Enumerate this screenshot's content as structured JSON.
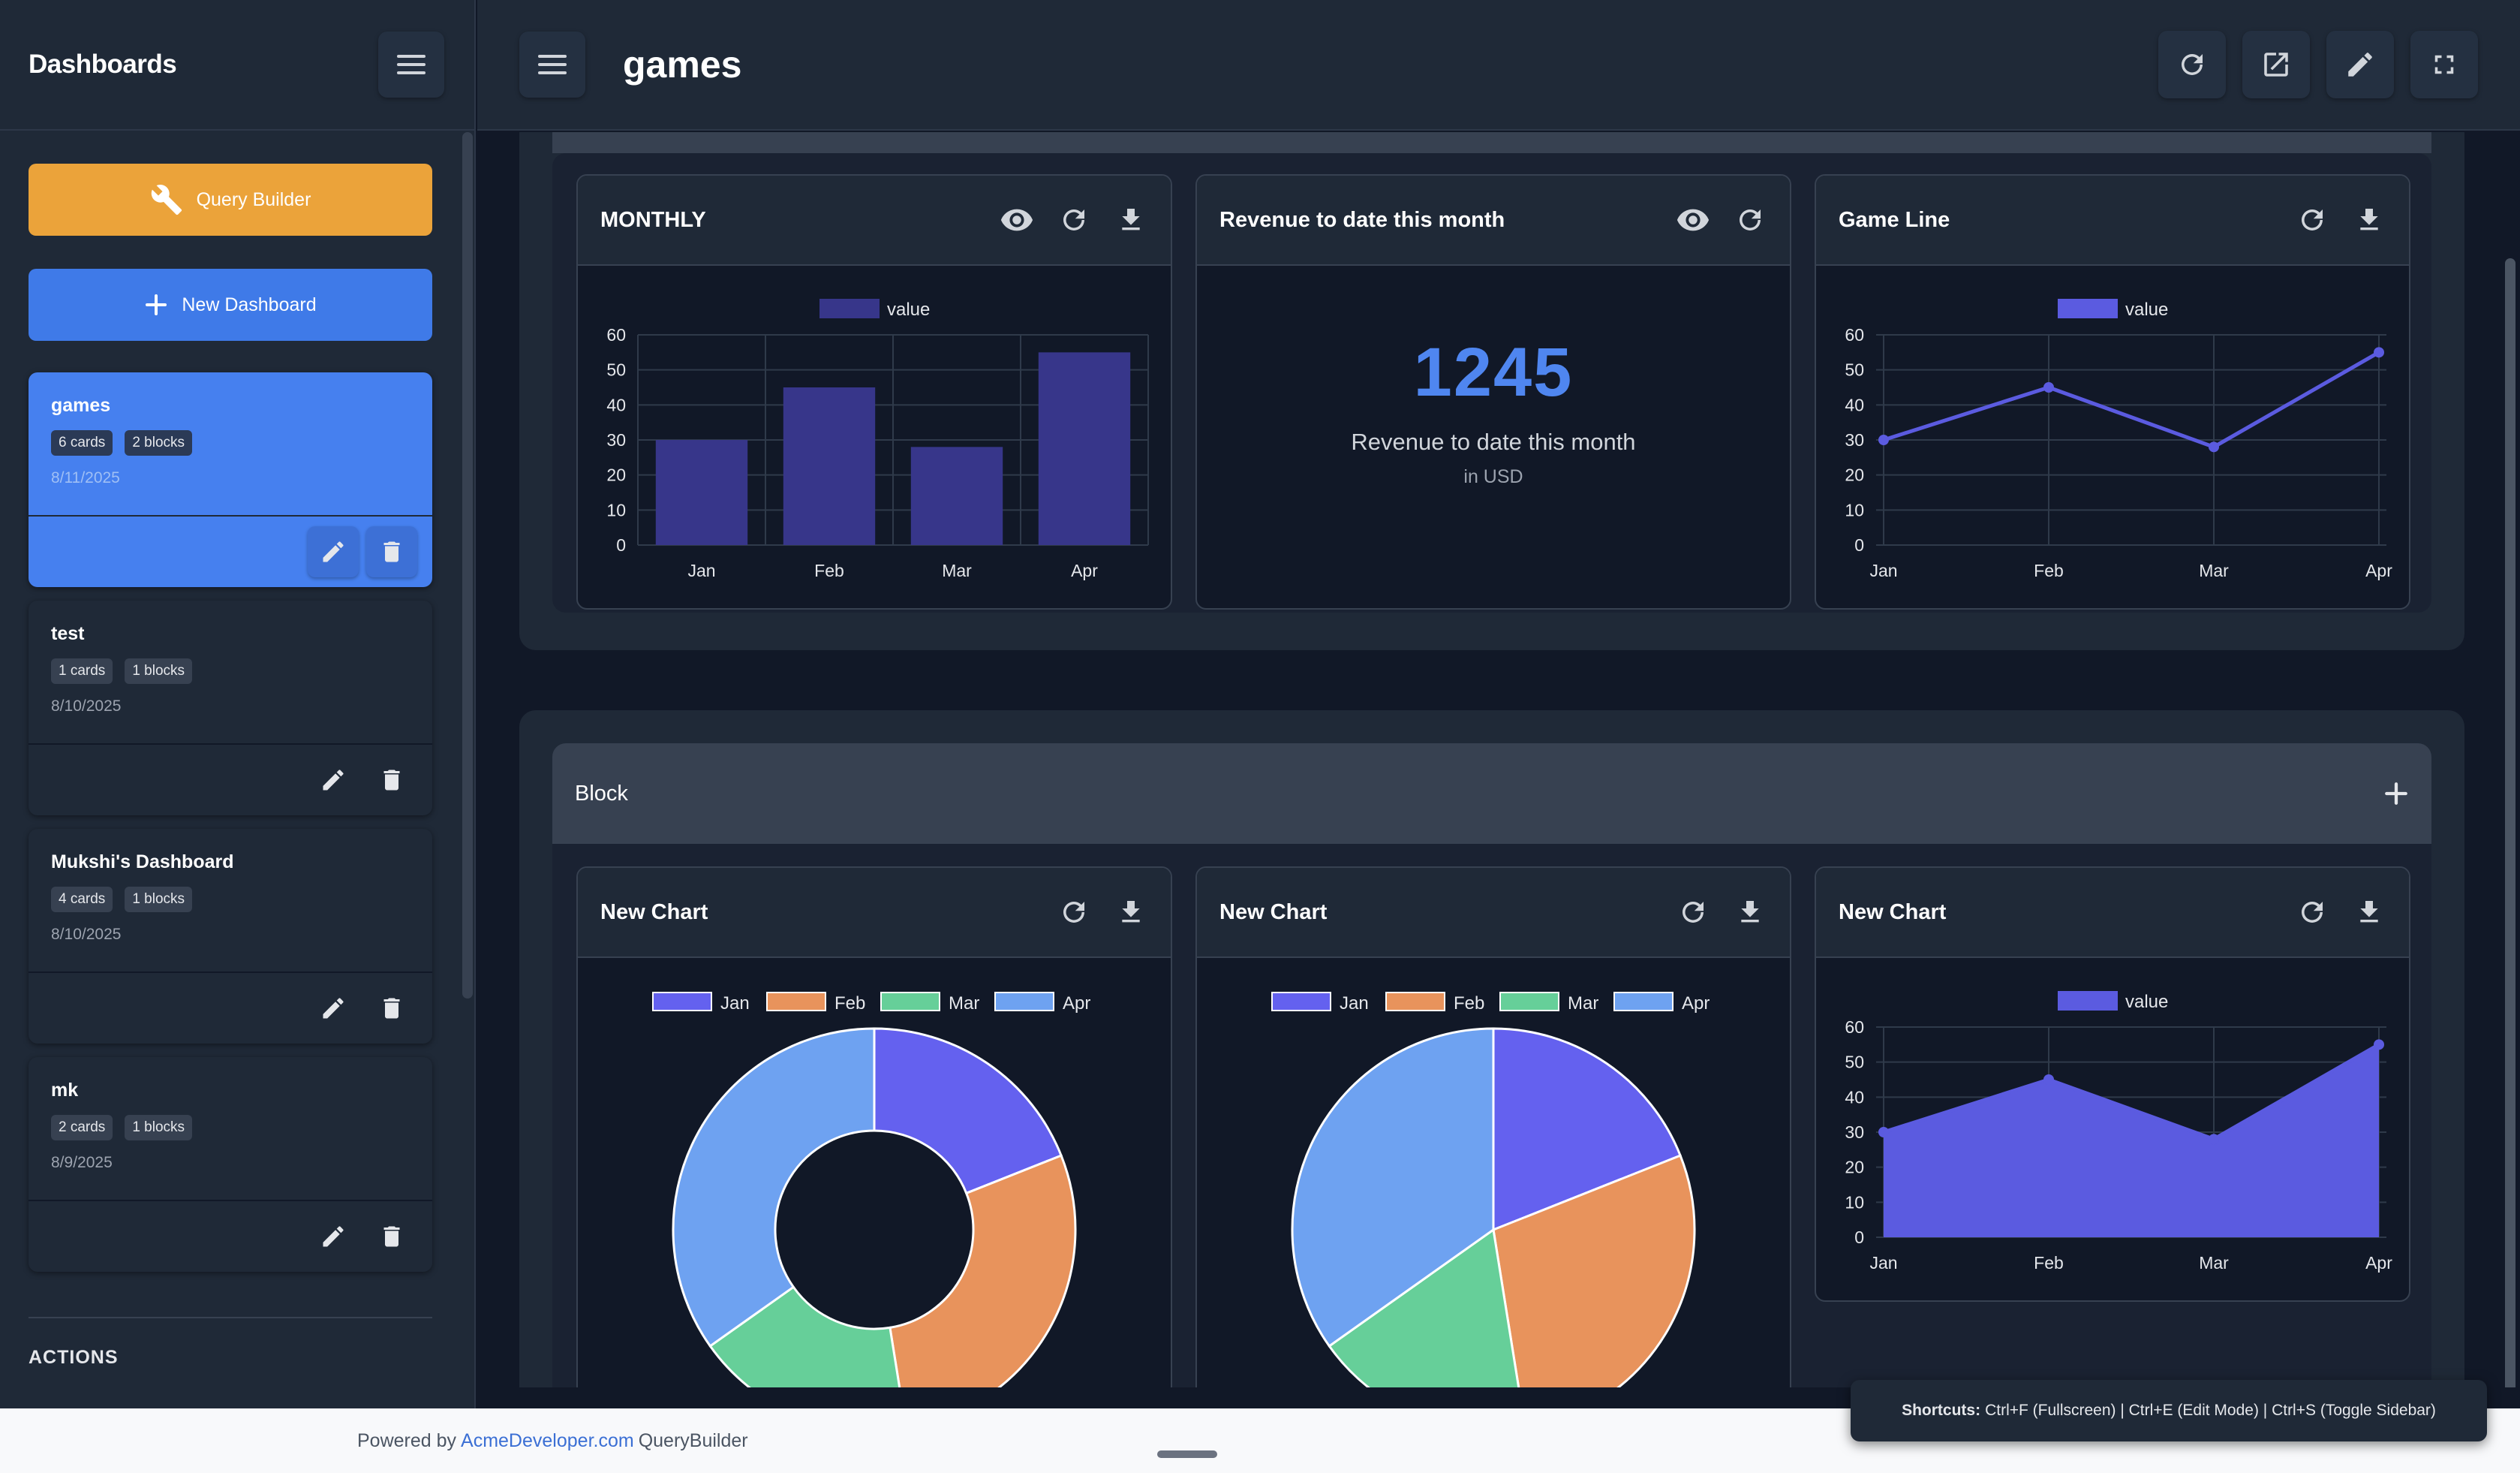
{
  "sidebar": {
    "title": "Dashboards",
    "query_builder_label": "Query Builder",
    "new_dashboard_label": "New Dashboard",
    "dashboards": [
      {
        "name": "games",
        "cards": "6 cards",
        "blocks": "2 blocks",
        "date": "8/11/2025"
      },
      {
        "name": "test",
        "cards": "1 cards",
        "blocks": "1 blocks",
        "date": "8/10/2025"
      },
      {
        "name": "Mukshi's Dashboard",
        "cards": "4 cards",
        "blocks": "1 blocks",
        "date": "8/10/2025"
      },
      {
        "name": "mk",
        "cards": "2 cards",
        "blocks": "1 blocks",
        "date": "8/9/2025"
      }
    ],
    "actions_label": "ACTIONS"
  },
  "header": {
    "title": "games"
  },
  "block2": {
    "title": "Block"
  },
  "cards": {
    "monthly": {
      "title": "MONTHLY"
    },
    "revenue": {
      "title": "Revenue to date this month",
      "value": "1245",
      "label": "Revenue to date this month",
      "sub": "in USD"
    },
    "gameline": {
      "title": "Game Line"
    },
    "chart1": {
      "title": "New Chart"
    },
    "chart2": {
      "title": "New Chart"
    },
    "chart3": {
      "title": "New Chart"
    }
  },
  "chart_data": [
    {
      "type": "bar",
      "categories": [
        "Jan",
        "Feb",
        "Mar",
        "Apr"
      ],
      "values": [
        30,
        45,
        28,
        55
      ],
      "legend": [
        "value"
      ],
      "ylim": [
        0,
        60
      ],
      "yticks": [
        0,
        10,
        20,
        30,
        40,
        50,
        60
      ]
    },
    {
      "type": "line",
      "categories": [
        "Jan",
        "Feb",
        "Mar",
        "Apr"
      ],
      "values": [
        30,
        45,
        28,
        55
      ],
      "legend": [
        "value"
      ],
      "ylim": [
        0,
        60
      ],
      "yticks": [
        0,
        10,
        20,
        30,
        40,
        50,
        60
      ]
    },
    {
      "type": "pie",
      "variant": "doughnut",
      "categories": [
        "Jan",
        "Feb",
        "Mar",
        "Apr"
      ],
      "values": [
        30,
        45,
        28,
        55
      ]
    },
    {
      "type": "pie",
      "categories": [
        "Jan",
        "Feb",
        "Mar",
        "Apr"
      ],
      "values": [
        30,
        45,
        28,
        55
      ]
    },
    {
      "type": "area",
      "categories": [
        "Jan",
        "Feb",
        "Mar",
        "Apr"
      ],
      "values": [
        30,
        45,
        28,
        55
      ],
      "legend": [
        "value"
      ],
      "ylim": [
        0,
        60
      ],
      "yticks": [
        0,
        10,
        20,
        30,
        40,
        50,
        60
      ]
    }
  ],
  "colors": {
    "pie": [
      "#6461ef",
      "#e8935c",
      "#66cf99",
      "#6ea2f1"
    ],
    "series": "#5b5be0",
    "bar": "#37368a"
  },
  "footer": {
    "prefix": "Powered by",
    "link": "AcmeDeveloper.com",
    "suffix": "QueryBuilder"
  },
  "shortcuts": {
    "label": "Shortcuts:",
    "text": "Ctrl+F (Fullscreen) | Ctrl+E (Edit Mode) | Ctrl+S (Toggle Sidebar)"
  }
}
